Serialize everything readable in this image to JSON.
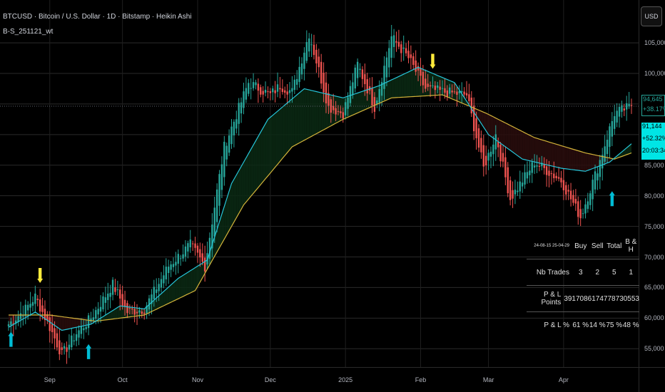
{
  "header": {
    "title": "BTCUSD · Bitcoin / U.S. Dollar · 1D · Bitstamp · Heikin Ashi",
    "indicator": "B-S_251121_wt",
    "currency": "USD"
  },
  "price_tags": {
    "last_price": "94,645",
    "last_change": "+38.17%",
    "ma_price": "91,144",
    "ma_change": "+52.32%",
    "countdown": "20:03:34"
  },
  "colors": {
    "background": "#000000",
    "up_candle": "#26a69a",
    "down_candle": "#ef5350",
    "fast_ma": "#26c6da",
    "slow_ma": "#d4b43a",
    "buy_signal": "#00bcd4",
    "sell_signal": "#ffeb3b",
    "bull_fill": "#0b2a14",
    "bear_fill": "#2a0d0d"
  },
  "stats_table": {
    "period": "24-08-15 25-04-29",
    "columns": [
      "Buy",
      "Sell",
      "Total",
      "B & H"
    ],
    "rows": [
      {
        "label": "Nb Trades",
        "values": [
          "3",
          "2",
          "5",
          "1"
        ]
      },
      {
        "label": "P & L Points",
        "values": [
          "39170",
          "8617",
          "47787",
          "30553"
        ]
      },
      {
        "label": "P & L %",
        "values": [
          "61 %",
          "14 %",
          "75 %",
          "48 %"
        ]
      }
    ]
  },
  "chart_data": {
    "type": "candlestick",
    "y_axis": {
      "range": [
        52000,
        112000
      ],
      "tick_values": [
        55000,
        60000,
        65000,
        70000,
        75000,
        80000,
        85000,
        90000,
        95000,
        100000,
        105000
      ],
      "tick_labels": [
        "55,000",
        "60,000",
        "65,000",
        "70,000",
        "75,000",
        "80,000",
        "85,000",
        "90,000",
        "95,000",
        "100,000",
        "105,000"
      ]
    },
    "x_axis": {
      "labels": [
        "Sep",
        "Oct",
        "Nov",
        "Dec",
        "2025",
        "Feb",
        "Mar",
        "Apr"
      ],
      "range": [
        "2024-08-15",
        "2025-04-29"
      ]
    },
    "price_path": [
      [
        "2024-08-15",
        59000
      ],
      [
        "2024-08-22",
        61500
      ],
      [
        "2024-08-26",
        63500
      ],
      [
        "2024-09-01",
        58500
      ],
      [
        "2024-09-06",
        54000
      ],
      [
        "2024-09-12",
        57500
      ],
      [
        "2024-09-18",
        60000
      ],
      [
        "2024-09-27",
        65500
      ],
      [
        "2024-10-03",
        61000
      ],
      [
        "2024-10-10",
        61500
      ],
      [
        "2024-10-20",
        68500
      ],
      [
        "2024-10-29",
        72000
      ],
      [
        "2024-11-04",
        68500
      ],
      [
        "2024-11-12",
        88000
      ],
      [
        "2024-11-22",
        98500
      ],
      [
        "2024-12-01",
        96500
      ],
      [
        "2024-12-05",
        98000
      ],
      [
        "2024-12-10",
        97000
      ],
      [
        "2024-12-17",
        106500
      ],
      [
        "2024-12-25",
        94500
      ],
      [
        "2024-12-31",
        93500
      ],
      [
        "2025-01-06",
        101500
      ],
      [
        "2025-01-13",
        94500
      ],
      [
        "2025-01-20",
        106000
      ],
      [
        "2025-01-27",
        102500
      ],
      [
        "2025-02-03",
        97500
      ],
      [
        "2025-02-10",
        97000
      ],
      [
        "2025-02-20",
        96500
      ],
      [
        "2025-02-27",
        84500
      ],
      [
        "2025-03-04",
        90000
      ],
      [
        "2025-03-10",
        79500
      ],
      [
        "2025-03-20",
        85500
      ],
      [
        "2025-03-31",
        82500
      ],
      [
        "2025-04-08",
        76500
      ],
      [
        "2025-04-15",
        84500
      ],
      [
        "2025-04-22",
        93500
      ],
      [
        "2025-04-29",
        94645
      ]
    ],
    "fast_ma_path": [
      [
        "2024-08-15",
        58500
      ],
      [
        "2024-08-26",
        61000
      ],
      [
        "2024-09-06",
        58000
      ],
      [
        "2024-09-18",
        59000
      ],
      [
        "2024-09-30",
        62000
      ],
      [
        "2024-10-10",
        61500
      ],
      [
        "2024-10-24",
        66500
      ],
      [
        "2024-11-05",
        69500
      ],
      [
        "2024-11-15",
        82000
      ],
      [
        "2024-11-30",
        92500
      ],
      [
        "2024-12-15",
        97500
      ],
      [
        "2024-12-31",
        96000
      ],
      [
        "2025-01-15",
        98000
      ],
      [
        "2025-01-31",
        101000
      ],
      [
        "2025-02-15",
        98500
      ],
      [
        "2025-03-01",
        90000
      ],
      [
        "2025-03-15",
        86000
      ],
      [
        "2025-03-31",
        84500
      ],
      [
        "2025-04-10",
        84000
      ],
      [
        "2025-04-20",
        85500
      ],
      [
        "2025-04-29",
        88500
      ]
    ],
    "slow_ma_path": [
      [
        "2024-08-15",
        60500
      ],
      [
        "2024-09-01",
        60500
      ],
      [
        "2024-09-20",
        59500
      ],
      [
        "2024-10-10",
        60500
      ],
      [
        "2024-10-31",
        64500
      ],
      [
        "2024-11-20",
        78500
      ],
      [
        "2024-12-10",
        88000
      ],
      [
        "2024-12-31",
        92500
      ],
      [
        "2025-01-20",
        96000
      ],
      [
        "2025-02-10",
        96500
      ],
      [
        "2025-02-28",
        93500
      ],
      [
        "2025-03-20",
        89500
      ],
      [
        "2025-04-10",
        87000
      ],
      [
        "2025-04-22",
        86000
      ],
      [
        "2025-04-29",
        87000
      ]
    ],
    "buy_signals": [
      [
        "2024-08-16",
        56000
      ],
      [
        "2024-09-17",
        54000
      ],
      [
        "2025-04-21",
        79000
      ]
    ],
    "sell_signals": [
      [
        "2024-08-28",
        67500
      ],
      [
        "2025-02-06",
        102500
      ]
    ],
    "last_price": 94645
  }
}
